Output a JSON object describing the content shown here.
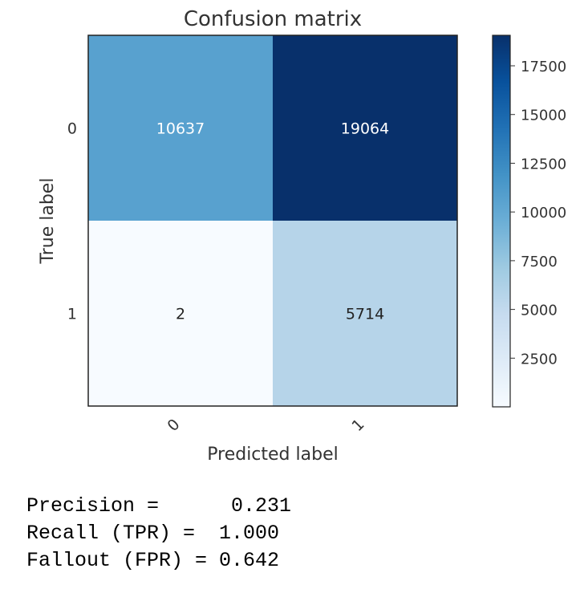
{
  "chart_data": {
    "type": "heatmap",
    "title": "Confusion matrix",
    "xlabel": "Predicted label",
    "ylabel": "True label",
    "x_categories": [
      "0",
      "1"
    ],
    "y_categories": [
      "0",
      "1"
    ],
    "values": [
      [
        10637,
        19064
      ],
      [
        2,
        5714
      ]
    ],
    "colormap": "Blues",
    "colorbar": {
      "ticks": [
        2500,
        5000,
        7500,
        10000,
        12500,
        15000,
        17500
      ],
      "tick_labels": [
        "2500",
        "5000",
        "7500",
        "10000",
        "12500",
        "15000",
        "17500"
      ],
      "range": [
        2,
        19064
      ]
    },
    "grid": false
  },
  "metrics": {
    "precision": "Precision =      0.231",
    "recall": "Recall (TPR) =  1.000",
    "fallout": "Fallout (FPR) = 0.642"
  }
}
